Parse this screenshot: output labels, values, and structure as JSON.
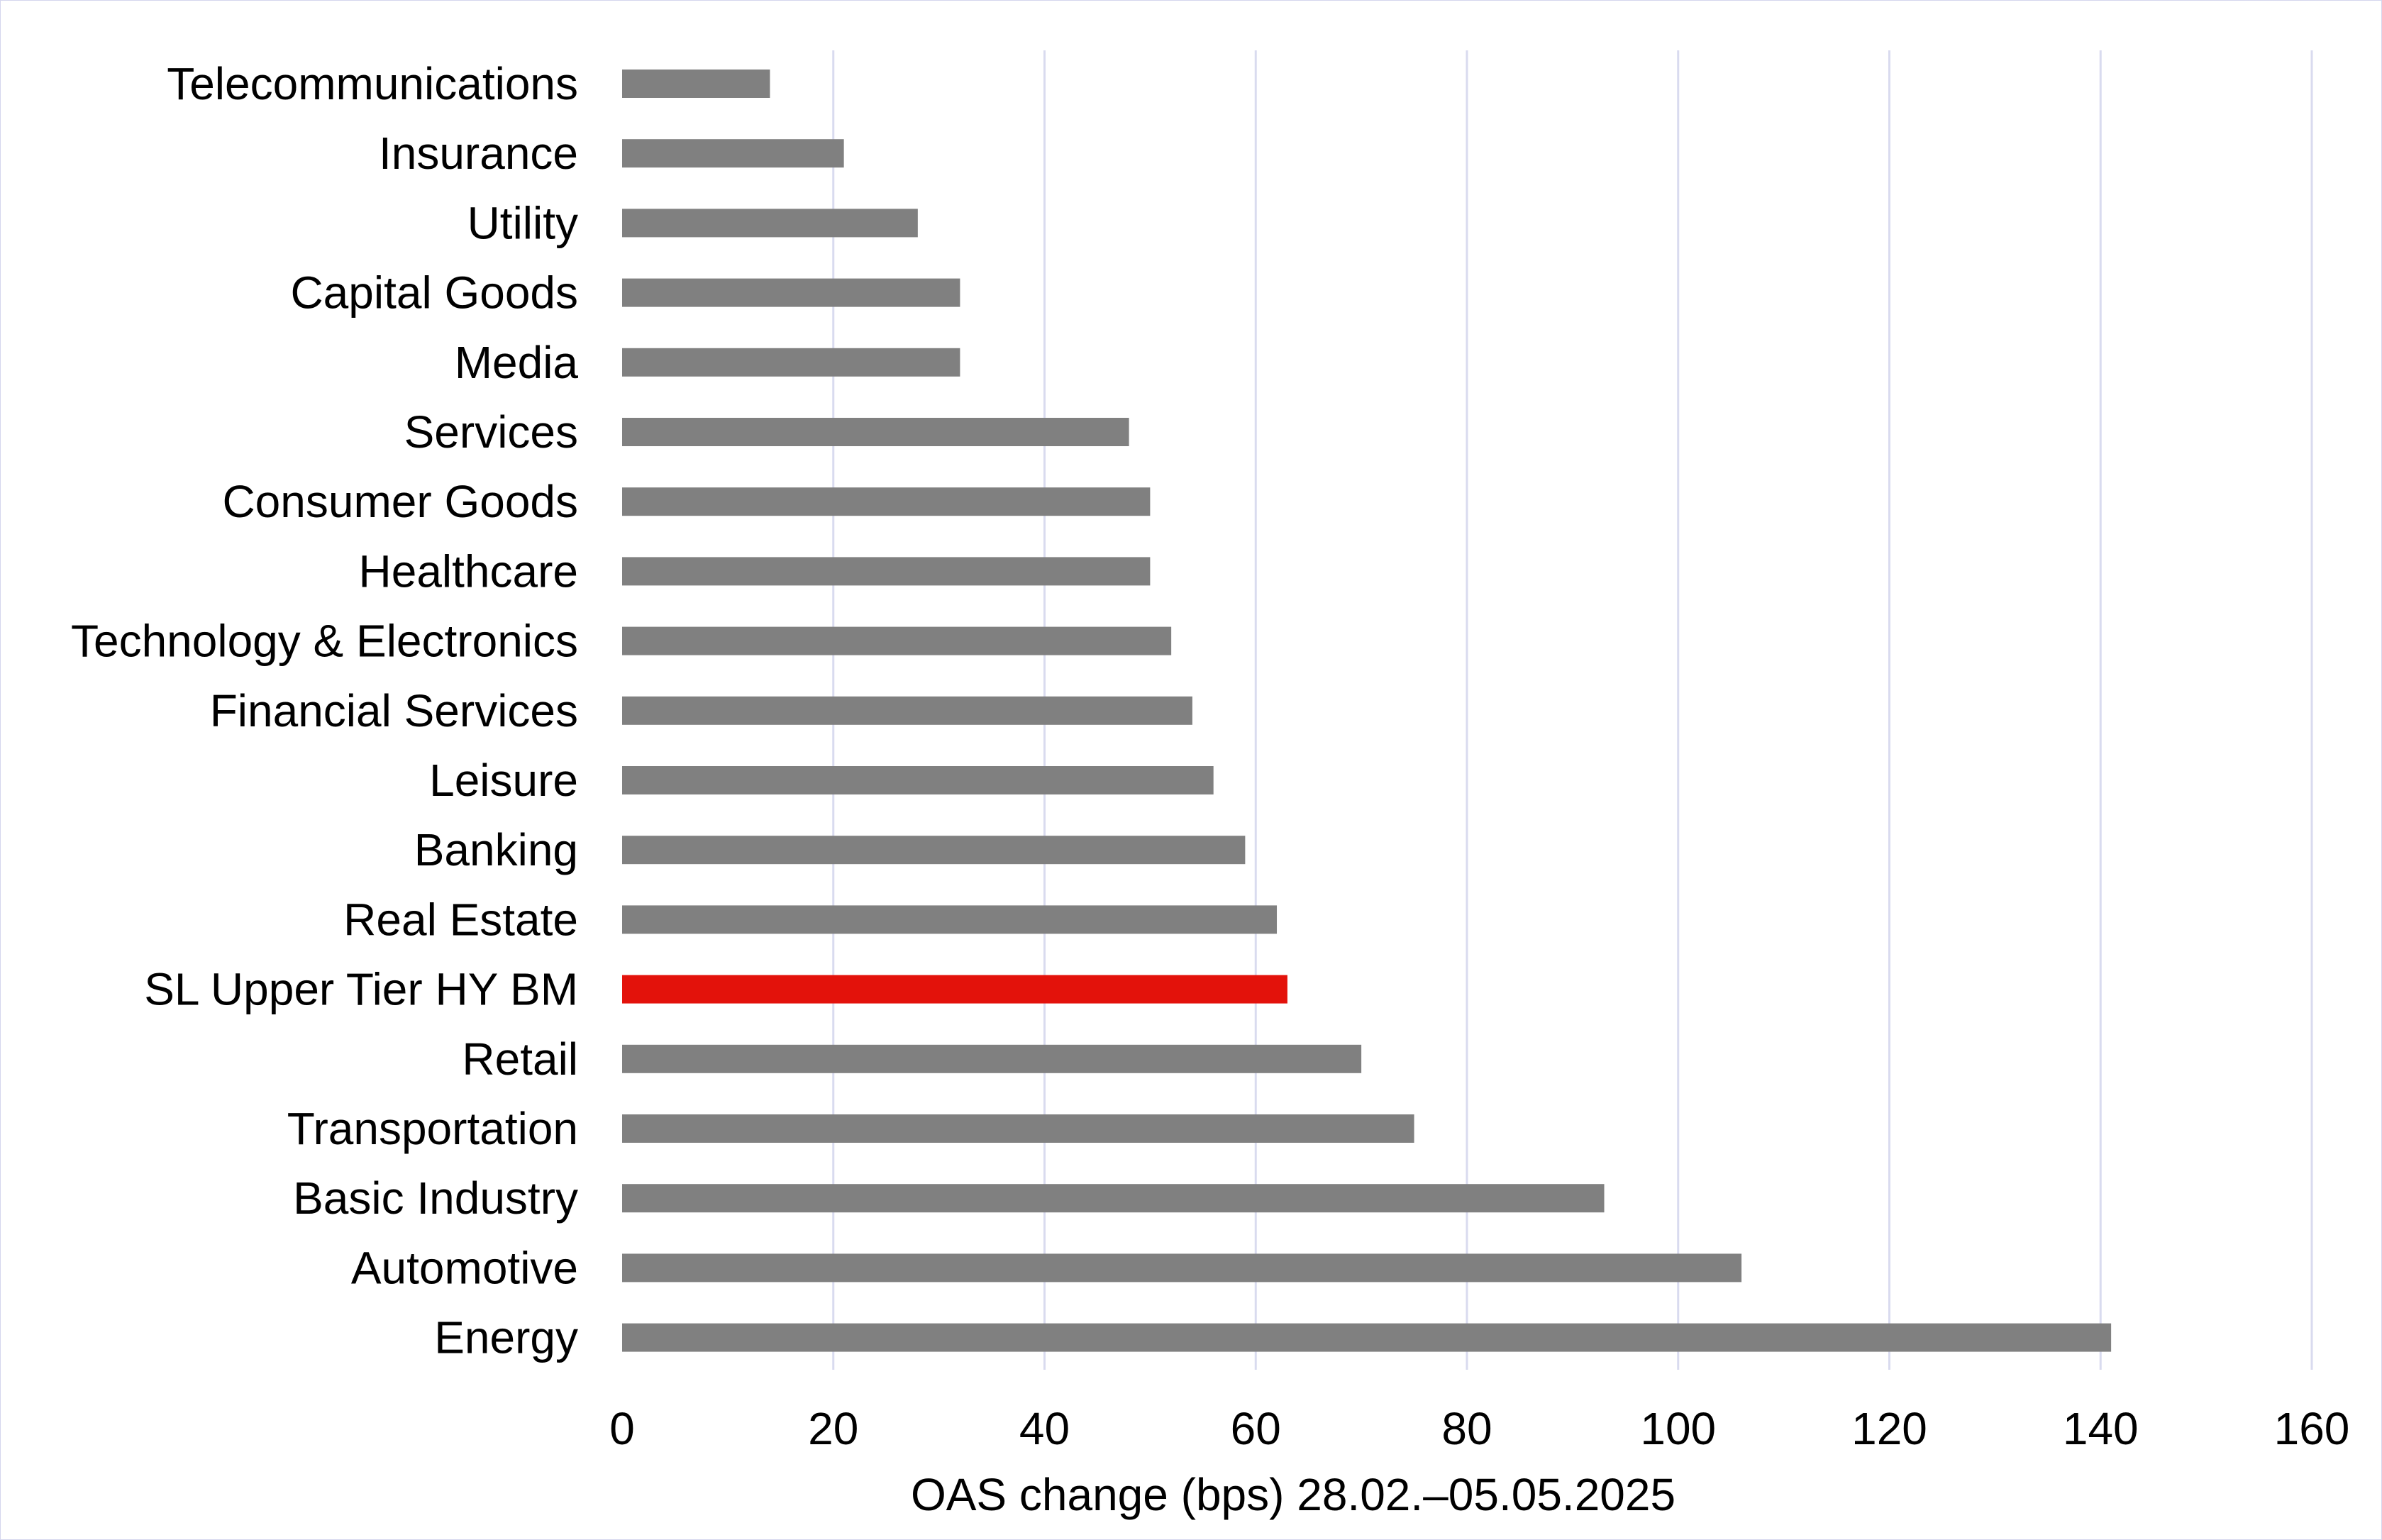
{
  "chart_data": {
    "type": "bar",
    "orientation": "horizontal",
    "title": "",
    "xlabel": "OAS change (bps) 28.02.–05.05.2025",
    "ylabel": "",
    "xlim": [
      0,
      160
    ],
    "xticks": [
      0,
      20,
      40,
      60,
      80,
      100,
      120,
      140,
      160
    ],
    "grid": true,
    "legend": "none",
    "categories": [
      "Telecommunications",
      "Insurance",
      "Utility",
      "Capital Goods",
      "Media",
      "Services",
      "Consumer Goods",
      "Healthcare",
      "Technology & Electronics",
      "Financial Services",
      "Leisure",
      "Banking",
      "Real Estate",
      "SL Upper Tier HY BM",
      "Retail",
      "Transportation",
      "Basic Industry",
      "Automotive",
      "Energy"
    ],
    "values": [
      14,
      21,
      28,
      32,
      32,
      48,
      50,
      50,
      52,
      54,
      56,
      59,
      62,
      63,
      70,
      75,
      93,
      106,
      141
    ],
    "highlight_category": "SL Upper Tier HY BM",
    "colors": {
      "bar": "#808080",
      "highlight": "#e3120b",
      "grid": "#d9dbef"
    }
  }
}
